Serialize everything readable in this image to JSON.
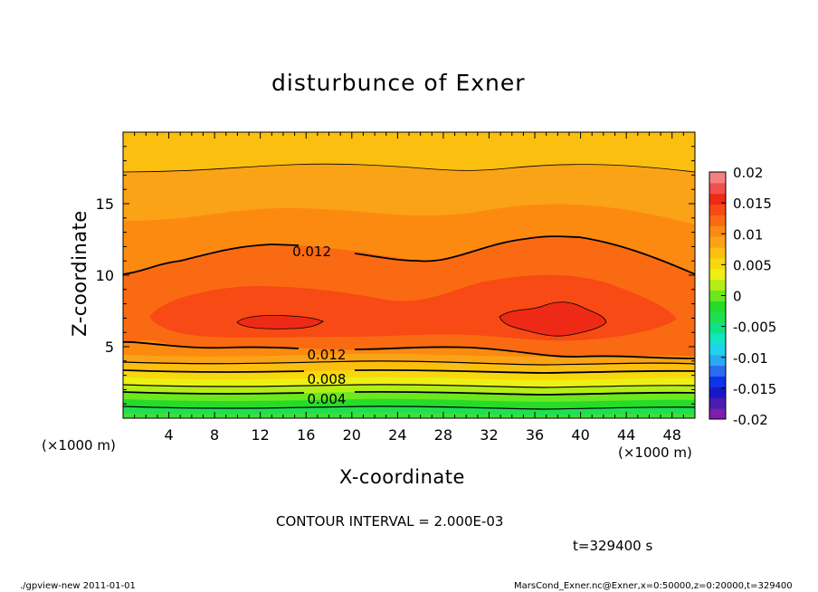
{
  "chart_data": {
    "type": "contour",
    "title": "disturbunce of Exner",
    "xlabel": "X-coordinate",
    "ylabel": "Z-coordinate",
    "x_unit": "(×1000 m)",
    "y_unit": "(×1000 m)",
    "xlim": [
      0,
      50
    ],
    "ylim": [
      0,
      20
    ],
    "xticks": [
      4,
      8,
      12,
      16,
      20,
      24,
      28,
      32,
      36,
      40,
      44,
      48
    ],
    "yticks": [
      5,
      10,
      15
    ],
    "colorbar": {
      "ticks": [
        "0.02",
        "0.015",
        "0.01",
        "0.005",
        "0",
        "-0.005",
        "-0.01",
        "-0.015",
        "-0.02"
      ],
      "range": [
        -0.02,
        0.02
      ],
      "colors": [
        "#7e1dae",
        "#4a1cb0",
        "#1a18c6",
        "#0d34e8",
        "#2a6bf0",
        "#2aa8f2",
        "#20d2ee",
        "#12e6c0",
        "#10e28a",
        "#1ee052",
        "#26dc28",
        "#6ce81e",
        "#b4ee18",
        "#ecf014",
        "#f8d80c",
        "#fbbf10",
        "#fba316",
        "#fc8a10",
        "#fa6a12",
        "#f84a14",
        "#ee2a16",
        "#f25050",
        "#f58080"
      ]
    },
    "contour_labels": [
      {
        "text": "0.012",
        "x": 16.5,
        "z": 11.7
      },
      {
        "text": "0.012",
        "x": 17.8,
        "z": 4.5
      },
      {
        "text": "0.008",
        "x": 17.8,
        "z": 2.8
      },
      {
        "text": "0.004",
        "x": 17.8,
        "z": 1.4
      }
    ],
    "contour_interval_text": "CONTOUR INTERVAL = 2.000E-03",
    "time_text": "t=329400 s"
  },
  "footer": {
    "left": "./gpview-new   2011-01-01",
    "right": "MarsCond_Exner.nc@Exner,x=0:50000,z=0:20000,t=329400"
  }
}
